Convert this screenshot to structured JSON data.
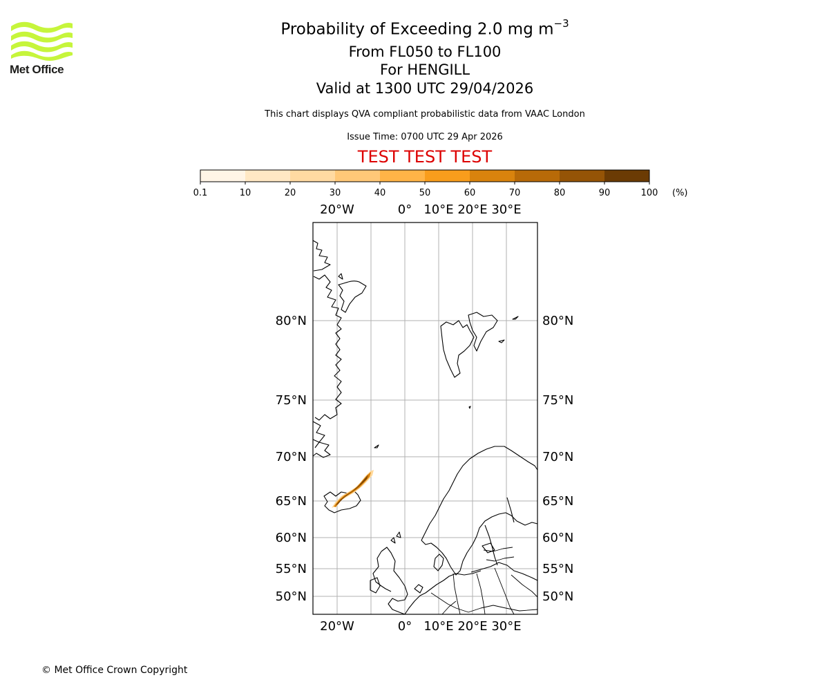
{
  "logo": {
    "text": "Met Office",
    "color": "#c6f53b"
  },
  "header": {
    "title_main": "Probability of Exceeding 2.0 mg m",
    "title_exponent": "−3",
    "flight_levels": "From FL050 to FL100",
    "volcano": "For HENGILL",
    "valid": "Valid at 1300 UTC 29/04/2026",
    "disclaimer": "This chart displays QVA compliant probabilistic data from VAAC London",
    "issue_time": "Issue Time: 0700 UTC 29 Apr 2026",
    "test_banner": "TEST TEST TEST",
    "test_color": "#dd0000"
  },
  "colorbar": {
    "ticks": [
      "0.1",
      "10",
      "20",
      "30",
      "40",
      "50",
      "60",
      "70",
      "80",
      "90",
      "100"
    ],
    "unit": "(%)",
    "colors": [
      "#fff5e6",
      "#ffe8c4",
      "#ffdaa2",
      "#ffc878",
      "#ffb447",
      "#f99d1c",
      "#d9830d",
      "#b86a08",
      "#955406",
      "#6b3b04"
    ]
  },
  "map": {
    "lon_labels": [
      "20°W",
      "0°",
      "10°E",
      "20°E",
      "30°E"
    ],
    "lat_labels": [
      "80°N",
      "75°N",
      "70°N",
      "65°N",
      "60°N",
      "55°N",
      "50°N"
    ]
  },
  "footer": {
    "copyright": "© Met Office Crown Copyright"
  }
}
